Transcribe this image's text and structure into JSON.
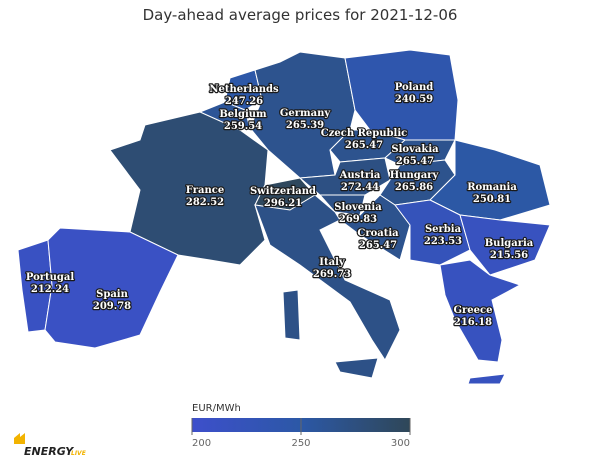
{
  "title": "Day-ahead average prices for 2021-12-06",
  "regions": [
    {
      "name": "Netherlands",
      "value": 247.26
    },
    {
      "name": "Belgium",
      "value": 259.54
    },
    {
      "name": "Germany",
      "value": 265.39
    },
    {
      "name": "Poland",
      "value": 240.59
    },
    {
      "name": "Czech Republic",
      "value": 265.47
    },
    {
      "name": "Slovakia",
      "value": 265.47
    },
    {
      "name": "Austria",
      "value": 272.44
    },
    {
      "name": "Hungary",
      "value": 265.86
    },
    {
      "name": "Romania",
      "value": 250.81
    },
    {
      "name": "France",
      "value": 282.52
    },
    {
      "name": "Switzerland",
      "value": 296.21
    },
    {
      "name": "Slovenia",
      "value": 269.83
    },
    {
      "name": "Croatia",
      "value": 265.47
    },
    {
      "name": "Serbia",
      "value": 223.53
    },
    {
      "name": "Bulgaria",
      "value": 215.56
    },
    {
      "name": "Italy",
      "value": 269.73
    },
    {
      "name": "Greece",
      "value": 216.18
    },
    {
      "name": "Portugal",
      "value": 212.24
    },
    {
      "name": "Spain",
      "value": 209.78
    }
  ],
  "colorbar": {
    "label": "EUR/MWh",
    "range": [
      200,
      300
    ],
    "ticks": [
      200,
      250,
      300
    ],
    "colors": [
      "#3d4fcb",
      "#2c58a6",
      "#2f4758"
    ]
  },
  "logo": {
    "main": "ENERGY",
    "sub": "LIVE"
  }
}
